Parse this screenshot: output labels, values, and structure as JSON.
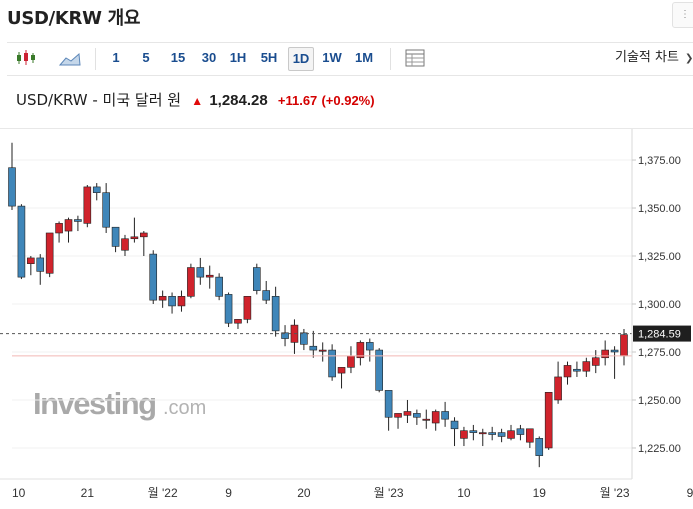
{
  "title": "USD/KRW 개요",
  "toolbar": {
    "intervals": [
      "1",
      "5",
      "15",
      "30",
      "1H",
      "5H",
      "1D",
      "1W",
      "1M"
    ],
    "active_interval": "1D",
    "technical_label": "기술적 차트"
  },
  "header": {
    "pair": "USD/KRW - 미국 달러 원",
    "price": "1,284.28",
    "change": "+11.67",
    "change_pct": "(+0.92%)",
    "direction": "up",
    "change_color": "#d40000"
  },
  "watermark": {
    "brand": "Investing",
    "suffix": ".com"
  },
  "chart_data": {
    "type": "candlestick",
    "x_tick_labels": [
      "10",
      "21",
      "월 '22",
      "9",
      "20",
      "월 '23",
      "10",
      "19",
      "월 '23",
      "9"
    ],
    "y_ticks": [
      "1,375.00",
      "1,350.00",
      "1,325.00",
      "1,300.00",
      "1,275.00",
      "1,250.00",
      "1,225.00"
    ],
    "y_range": [
      1213,
      1387
    ],
    "last_price_label": "1,284.59",
    "last_price": 1284.59,
    "reference_line": 1273,
    "colors": {
      "up": "#d0232c",
      "down": "#3f86b9"
    },
    "candles": [
      [
        1371,
        1384,
        1349,
        1351
      ],
      [
        1351,
        1352,
        1313,
        1314
      ],
      [
        1321,
        1325,
        1315,
        1324
      ],
      [
        1324,
        1326,
        1310,
        1317
      ],
      [
        1316,
        1337,
        1314,
        1337
      ],
      [
        1337,
        1343,
        1332,
        1342
      ],
      [
        1338,
        1345,
        1332,
        1344
      ],
      [
        1344,
        1346,
        1338,
        1343
      ],
      [
        1342,
        1362,
        1340,
        1361
      ],
      [
        1361,
        1363,
        1354,
        1358
      ],
      [
        1358,
        1363,
        1337,
        1340
      ],
      [
        1340,
        1340,
        1327,
        1330
      ],
      [
        1328,
        1336,
        1325,
        1334
      ],
      [
        1334,
        1345,
        1332,
        1335
      ],
      [
        1335,
        1338,
        1325,
        1337
      ],
      [
        1326,
        1328,
        1300,
        1302
      ],
      [
        1302,
        1307,
        1298,
        1304
      ],
      [
        1304,
        1306,
        1295,
        1299
      ],
      [
        1299,
        1307,
        1296,
        1304
      ],
      [
        1304,
        1321,
        1303,
        1319
      ],
      [
        1319,
        1324,
        1310,
        1314
      ],
      [
        1314,
        1320,
        1308,
        1315
      ],
      [
        1314,
        1316,
        1302,
        1304
      ],
      [
        1305,
        1306,
        1288,
        1290
      ],
      [
        1290,
        1292,
        1287,
        1292
      ],
      [
        1292,
        1304,
        1290,
        1304
      ],
      [
        1319,
        1321,
        1305,
        1307
      ],
      [
        1307,
        1312,
        1300,
        1302
      ],
      [
        1304,
        1309,
        1283,
        1286
      ],
      [
        1285,
        1289,
        1278,
        1282
      ],
      [
        1280,
        1292,
        1274,
        1289
      ],
      [
        1285,
        1287,
        1276,
        1279
      ],
      [
        1278,
        1286,
        1272,
        1276
      ],
      [
        1276,
        1280,
        1270,
        1276
      ],
      [
        1276,
        1279,
        1260,
        1262
      ],
      [
        1264,
        1267,
        1256,
        1267
      ],
      [
        1267,
        1278,
        1264,
        1273
      ],
      [
        1272,
        1281,
        1268,
        1280
      ],
      [
        1280,
        1282,
        1270,
        1276
      ],
      [
        1276,
        1277,
        1254,
        1255
      ],
      [
        1255,
        1255,
        1234,
        1241
      ],
      [
        1241,
        1243,
        1235,
        1243
      ],
      [
        1242,
        1250,
        1238,
        1244
      ],
      [
        1243,
        1245,
        1237,
        1241
      ],
      [
        1240,
        1245,
        1235,
        1240
      ],
      [
        1238,
        1245,
        1234,
        1244
      ],
      [
        1244,
        1249,
        1236,
        1240
      ],
      [
        1239,
        1241,
        1226,
        1235
      ],
      [
        1230,
        1236,
        1226,
        1234
      ],
      [
        1234,
        1237,
        1229,
        1233
      ],
      [
        1233,
        1235,
        1226,
        1233
      ],
      [
        1233,
        1236,
        1229,
        1232
      ],
      [
        1233,
        1235,
        1228,
        1231
      ],
      [
        1230,
        1237,
        1229,
        1234
      ],
      [
        1235,
        1237,
        1229,
        1232
      ],
      [
        1228,
        1235,
        1225,
        1235
      ],
      [
        1230,
        1231,
        1215,
        1221
      ],
      [
        1225,
        1254,
        1224,
        1254
      ],
      [
        1250,
        1270,
        1248,
        1262
      ],
      [
        1262,
        1270,
        1258,
        1268
      ],
      [
        1266,
        1270,
        1262,
        1265
      ],
      [
        1265,
        1272,
        1262,
        1270
      ],
      [
        1268,
        1276,
        1264,
        1272
      ],
      [
        1272,
        1281,
        1268,
        1276
      ],
      [
        1276,
        1278,
        1261,
        1275
      ],
      [
        1273,
        1287,
        1268,
        1284
      ]
    ]
  }
}
